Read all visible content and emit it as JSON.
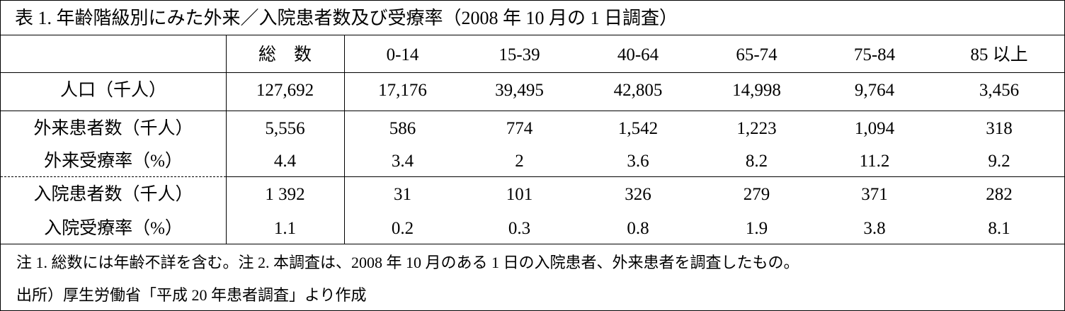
{
  "title": "表 1. 年齢階級別にみた外来／入院患者数及び受療率（2008 年 10 月の 1 日調査）",
  "table": {
    "header": [
      "",
      "総　数",
      "0-14",
      "15-39",
      "40-64",
      "65-74",
      "75-84",
      "85 以上"
    ],
    "rows": [
      [
        "人口（千人）",
        "127,692",
        "17,176",
        "39,495",
        "42,805",
        "14,998",
        "9,764",
        "3,456"
      ],
      [
        "外来患者数（千人）",
        "5,556",
        "586",
        "774",
        "1,542",
        "1,223",
        "1,094",
        "318"
      ],
      [
        "外来受療率（%）",
        "4.4",
        "3.4",
        "2",
        "3.6",
        "8.2",
        "11.2",
        "9.2"
      ],
      [
        "入院患者数（千人）",
        "1 392",
        "31",
        "101",
        "326",
        "279",
        "371",
        "282"
      ],
      [
        "入院受療率（%）",
        "1.1",
        "0.2",
        "0.3",
        "0.8",
        "1.9",
        "3.8",
        "8.1"
      ]
    ]
  },
  "notes": [
    "注 1. 総数には年齢不詳を含む。注 2. 本調査は、2008 年 10 月のある 1 日の入院患者、外来患者を調査したもの。",
    "出所）厚生労働省「平成 20 年患者調査」より作成"
  ]
}
